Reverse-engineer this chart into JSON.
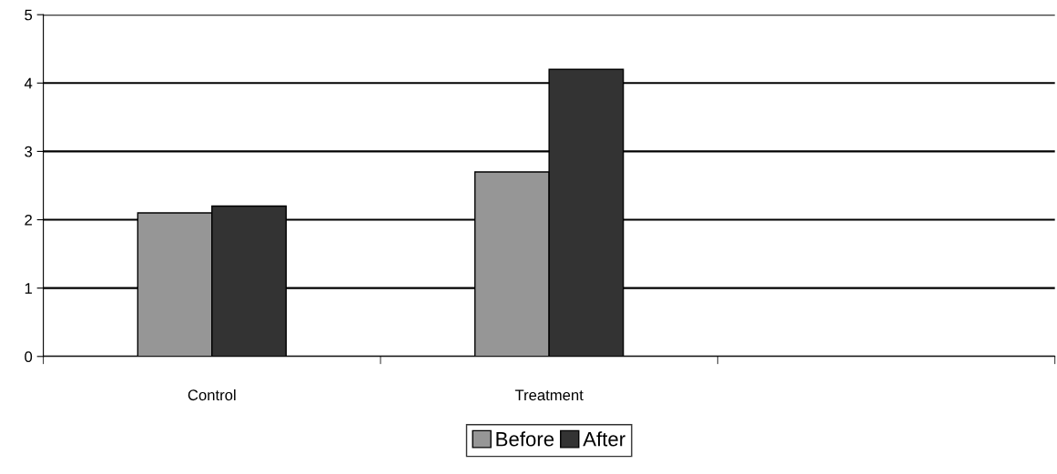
{
  "chart_data": {
    "type": "bar",
    "categories": [
      "Control",
      "Treatment",
      null
    ],
    "series": [
      {
        "name": "Before",
        "color": "#969696",
        "values": [
          2.1,
          2.7,
          null
        ]
      },
      {
        "name": "After",
        "color": "#333333",
        "values": [
          2.2,
          4.2,
          null
        ]
      }
    ],
    "ylim": [
      0,
      5
    ],
    "yticks": [
      0,
      1,
      2,
      3,
      4,
      5
    ],
    "grid": "y",
    "legend": "bottom"
  }
}
